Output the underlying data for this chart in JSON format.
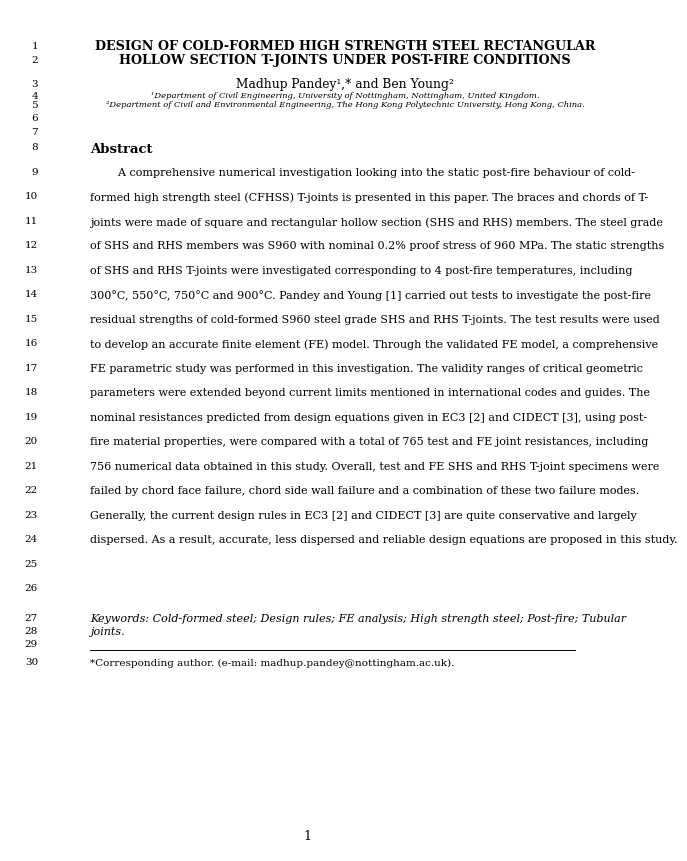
{
  "title_line1": "DESIGN OF COLD-FORMED HIGH STRENGTH STEEL RECTANGULAR",
  "title_line2": "HOLLOW SECTION T-JOINTS UNDER POST-FIRE CONDITIONS",
  "authors": "Madhup Pandey¹,* and Ben Young²",
  "affil1": "¹Department of Civil Engineering, University of Nottingham, Nottingham, United Kingdom.",
  "affil2": "²Department of Civil and Environmental Engineering, The Hong Kong Polytechnic University, Hong Kong, China.",
  "abstract_label": "Abstract",
  "keywords_line1": "Keywords: Cold-formed steel; Design rules; FE analysis; High strength steel; Post-fire; Tubular",
  "keywords_line2": "joints.",
  "footnote": "*Corresponding author. (e-mail: madhup.pandey@nottingham.ac.uk).",
  "page_number": "1",
  "bg_color": "#ffffff",
  "text_color": "#000000",
  "abstract_lines": [
    "        A comprehensive numerical investigation looking into the static post-fire behaviour of cold-",
    "formed high strength steel (CFHSS) T-joints is presented in this paper. The braces and chords of T-",
    "joints were made of square and rectangular hollow section (SHS and RHS) members. The steel grade",
    "of SHS and RHS members was S960 with nominal 0.2% proof stress of 960 MPa. The static strengths",
    "of SHS and RHS T-joints were investigated corresponding to 4 post-fire temperatures, including",
    "300°C, 550°C, 750°C and 900°C. Pandey and Young [1] carried out tests to investigate the post-fire",
    "residual strengths of cold-formed S960 steel grade SHS and RHS T-joints. The test results were used",
    "to develop an accurate finite element (FE) model. Through the validated FE model, a comprehensive",
    "FE parametric study was performed in this investigation. The validity ranges of critical geometric",
    "parameters were extended beyond current limits mentioned in international codes and guides. The",
    "nominal resistances predicted from design equations given in EC3 [2] and CIDECT [3], using post-",
    "fire material properties, were compared with a total of 765 test and FE joint resistances, including",
    "756 numerical data obtained in this study. Overall, test and FE SHS and RHS T-joint specimens were",
    "failed by chord face failure, chord side wall failure and a combination of these two failure modes.",
    "Generally, the current design rules in EC3 [2] and CIDECT [3] are quite conservative and largely",
    "dispersed. As a result, accurate, less dispersed and reliable design equations are proposed in this study."
  ]
}
